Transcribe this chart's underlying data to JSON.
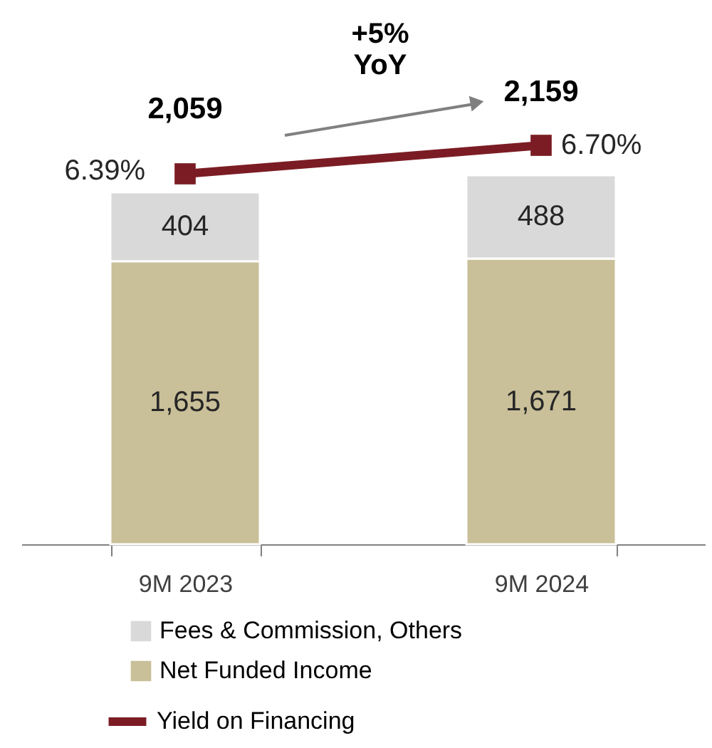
{
  "chart_data": {
    "type": "bar",
    "stacked": true,
    "categories": [
      "9M 2023",
      "9M 2024"
    ],
    "series": [
      {
        "name": "Net Funded Income",
        "color": "#c9bf98",
        "values": [
          1655,
          1671
        ],
        "value_labels": [
          "1,655",
          "1,671"
        ]
      },
      {
        "name": "Fees & Commission, Others",
        "color": "#d9d9d9",
        "values": [
          404,
          488
        ],
        "value_labels": [
          "404",
          "488"
        ]
      },
      {
        "name": "Yield on Financing",
        "color": "#7b1c24",
        "type": "line",
        "axis": "y2",
        "marker": "square",
        "values": [
          6.39,
          6.7
        ],
        "value_labels": [
          "6.39%",
          "6.70%"
        ]
      }
    ],
    "totals": [
      "2,059",
      "2,159"
    ],
    "data_labels": true,
    "annotations": [
      "+5% YoY"
    ],
    "ylim": [
      0,
      3167
    ],
    "y2lim": [
      2.36,
      8.25
    ],
    "tick_labels": "x",
    "grid": false,
    "legend": "bottom"
  }
}
